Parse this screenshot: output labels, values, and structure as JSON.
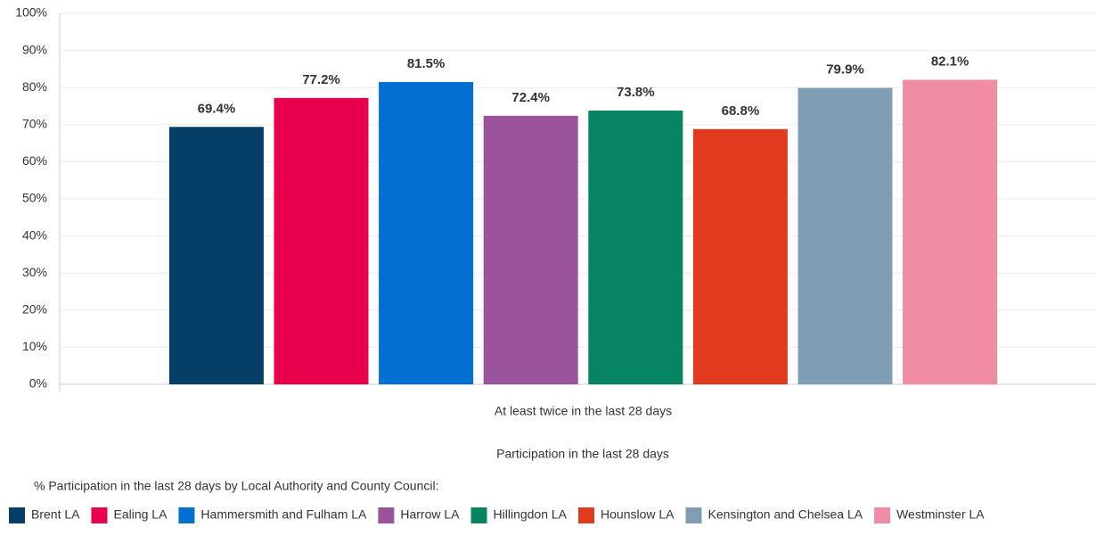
{
  "chart_data": {
    "type": "bar",
    "categories": [
      "At least twice in the last 28 days"
    ],
    "x_label": "Participation in the last 28 days",
    "legend_title": "% Participation in the last 28 days by Local Authority and County Council:",
    "ylim": [
      0,
      100
    ],
    "yticks": [
      {
        "value": 0,
        "label": "0%"
      },
      {
        "value": 10,
        "label": "10%"
      },
      {
        "value": 20,
        "label": "20%"
      },
      {
        "value": 30,
        "label": "30%"
      },
      {
        "value": 40,
        "label": "40%"
      },
      {
        "value": 50,
        "label": "50%"
      },
      {
        "value": 60,
        "label": "60%"
      },
      {
        "value": 70,
        "label": "70%"
      },
      {
        "value": 80,
        "label": "80%"
      },
      {
        "value": 90,
        "label": "90%"
      },
      {
        "value": 100,
        "label": "100%"
      }
    ],
    "grid": true,
    "series": [
      {
        "name": "Brent LA",
        "color": "#053e66",
        "values": [
          69.4
        ],
        "value_labels": [
          "69.4%"
        ]
      },
      {
        "name": "Ealing LA",
        "color": "#e8004c",
        "values": [
          77.2
        ],
        "value_labels": [
          "77.2%"
        ]
      },
      {
        "name": "Hammersmith and Fulham LA",
        "color": "#036fd1",
        "values": [
          81.5
        ],
        "value_labels": [
          "81.5%"
        ]
      },
      {
        "name": "Harrow LA",
        "color": "#9b549c",
        "values": [
          72.4
        ],
        "value_labels": [
          "72.4%"
        ]
      },
      {
        "name": "Hillingdon LA",
        "color": "#078563",
        "values": [
          73.8
        ],
        "value_labels": [
          "73.8%"
        ]
      },
      {
        "name": "Hounslow LA",
        "color": "#e03b1f",
        "values": [
          68.8
        ],
        "value_labels": [
          "68.8%"
        ]
      },
      {
        "name": "Kensington and Chelsea LA",
        "color": "#7f9db3",
        "values": [
          79.9
        ],
        "value_labels": [
          "79.9%"
        ]
      },
      {
        "name": "Westminster LA",
        "color": "#f08ca4",
        "values": [
          82.1
        ],
        "value_labels": [
          "82.1%"
        ]
      }
    ]
  }
}
